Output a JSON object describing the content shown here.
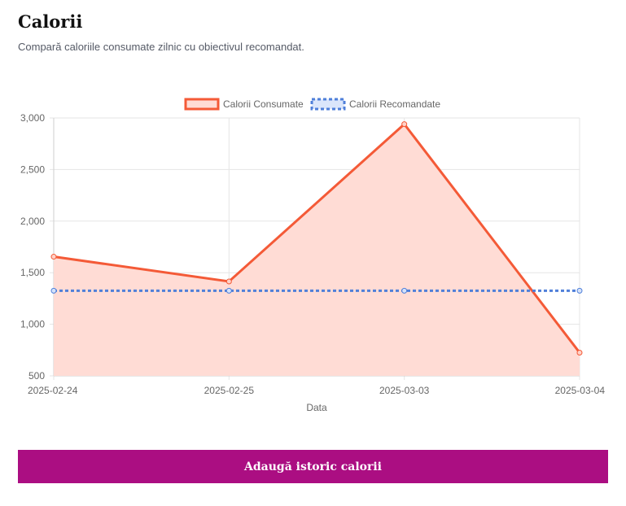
{
  "page": {
    "title": "Calorii",
    "subtitle": "Compară caloriile consumate zilnic cu obiectivul recomandat."
  },
  "button": {
    "label": "Adaugă istoric calorii"
  },
  "colors": {
    "consumed_line": "#f45a37",
    "consumed_fill": "#ffdcd5",
    "recommended_line": "#4f7fd9",
    "accent": "#ab0e82"
  },
  "chart_data": {
    "type": "line",
    "x": [
      "2025-02-24",
      "2025-02-25",
      "2025-03-03",
      "2025-03-04"
    ],
    "xlabel": "Data",
    "ylabel": "",
    "ylim": [
      500,
      3000
    ],
    "yticks": [
      "3,000",
      "2,500",
      "2,000",
      "1,500",
      "1,000",
      "500"
    ],
    "ytick_values": [
      3000,
      2500,
      2000,
      1500,
      1000,
      500
    ],
    "grid": true,
    "legend": "top-center",
    "series": [
      {
        "name": "Calorii Consumate",
        "values": [
          1655,
          1415,
          2940,
          725
        ],
        "fill": true,
        "style": "solid"
      },
      {
        "name": "Calorii Recomandate",
        "values": [
          1325,
          1325,
          1325,
          1325
        ],
        "fill": false,
        "style": "dashed"
      }
    ]
  }
}
